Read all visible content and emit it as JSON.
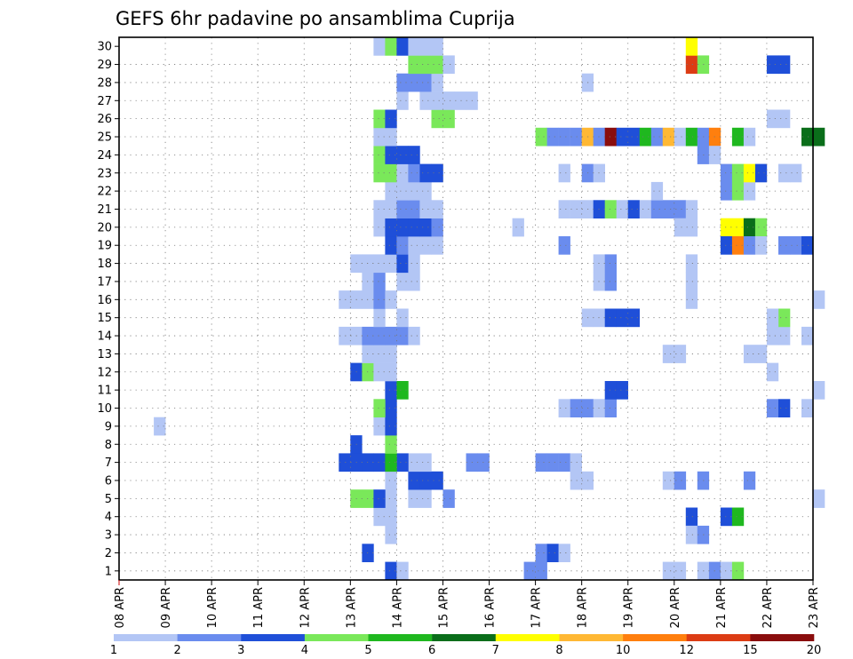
{
  "chart_data": {
    "type": "heatmap",
    "title": "GEFS 6hr padavine po ansamblima Cuprija",
    "x_ticks": [
      "08 APR",
      "09 APR",
      "10 APR",
      "11 APR",
      "12 APR",
      "13 APR",
      "14 APR",
      "15 APR",
      "16 APR",
      "17 APR",
      "18 APR",
      "19 APR",
      "20 APR",
      "21 APR",
      "22 APR",
      "23 APR"
    ],
    "x_start": "08 APR 00Z",
    "x_step": "6h",
    "y_ticks": [
      1,
      2,
      3,
      4,
      5,
      6,
      7,
      8,
      9,
      10,
      11,
      12,
      13,
      14,
      15,
      16,
      17,
      18,
      19,
      20,
      21,
      22,
      23,
      24,
      25,
      26,
      27,
      28,
      29,
      30
    ],
    "y_range": [
      0,
      30
    ],
    "grid": true,
    "legend": {
      "placement": "bottom",
      "labels": [
        "1",
        "2",
        "3",
        "4",
        "5",
        "6",
        "7",
        "8",
        "10",
        "12",
        "15",
        "20"
      ],
      "colors": [
        "#b3c6f5",
        "#6a8cee",
        "#1f4fd8",
        "#7ae85a",
        "#1fb81f",
        "#0a6e1a",
        "#ffff00",
        "#ffb834",
        "#ff7f0e",
        "#dc3c14",
        "#8a0d0d"
      ]
    },
    "cells": [
      [
        3,
        8,
        0
      ],
      [
        23,
        0,
        2
      ],
      [
        24,
        0,
        0
      ],
      [
        21,
        1,
        2
      ],
      [
        23,
        2,
        0
      ],
      [
        23,
        3,
        0
      ],
      [
        22,
        3,
        0
      ],
      [
        23,
        4,
        0
      ],
      [
        25,
        4,
        0
      ],
      [
        26,
        4,
        0
      ],
      [
        28,
        4,
        1
      ],
      [
        20,
        4,
        3
      ],
      [
        21,
        4,
        3
      ],
      [
        22,
        4,
        2
      ],
      [
        23,
        5,
        0
      ],
      [
        26,
        5,
        2
      ],
      [
        27,
        5,
        2
      ],
      [
        25,
        5,
        2
      ],
      [
        26,
        6,
        0
      ],
      [
        25,
        6,
        0
      ],
      [
        30,
        6,
        1
      ],
      [
        31,
        6,
        1
      ],
      [
        20,
        6,
        2
      ],
      [
        21,
        6,
        2
      ],
      [
        22,
        6,
        2
      ],
      [
        24,
        6,
        2
      ],
      [
        23,
        6,
        4
      ],
      [
        19,
        6,
        2
      ],
      [
        20,
        7,
        2
      ],
      [
        23,
        7,
        3
      ],
      [
        22,
        8,
        0
      ],
      [
        23,
        8,
        2
      ],
      [
        23,
        9,
        2
      ],
      [
        22,
        9,
        3
      ],
      [
        23,
        10,
        2
      ],
      [
        24,
        10,
        4
      ],
      [
        20,
        11,
        2
      ],
      [
        21,
        11,
        3
      ],
      [
        22,
        11,
        0
      ],
      [
        23,
        11,
        0
      ],
      [
        21,
        12,
        0
      ],
      [
        22,
        12,
        0
      ],
      [
        23,
        12,
        0
      ],
      [
        19,
        13,
        0
      ],
      [
        20,
        13,
        0
      ],
      [
        21,
        13,
        1
      ],
      [
        22,
        13,
        1
      ],
      [
        23,
        13,
        1
      ],
      [
        24,
        13,
        1
      ],
      [
        25,
        13,
        0
      ],
      [
        22,
        14,
        0
      ],
      [
        24,
        14,
        0
      ],
      [
        19,
        15,
        0
      ],
      [
        20,
        15,
        0
      ],
      [
        21,
        15,
        0
      ],
      [
        22,
        15,
        1
      ],
      [
        23,
        15,
        0
      ],
      [
        21,
        16,
        0
      ],
      [
        22,
        16,
        1
      ],
      [
        24,
        16,
        0
      ],
      [
        25,
        16,
        0
      ],
      [
        20,
        17,
        0
      ],
      [
        21,
        17,
        0
      ],
      [
        22,
        17,
        0
      ],
      [
        23,
        17,
        0
      ],
      [
        24,
        17,
        2
      ],
      [
        25,
        17,
        0
      ],
      [
        23,
        18,
        2
      ],
      [
        24,
        18,
        1
      ],
      [
        25,
        18,
        0
      ],
      [
        26,
        18,
        0
      ],
      [
        27,
        18,
        0
      ],
      [
        22,
        19,
        0
      ],
      [
        23,
        19,
        2
      ],
      [
        24,
        19,
        2
      ],
      [
        25,
        19,
        2
      ],
      [
        26,
        19,
        2
      ],
      [
        27,
        19,
        1
      ],
      [
        22,
        20,
        0
      ],
      [
        23,
        20,
        0
      ],
      [
        24,
        20,
        1
      ],
      [
        25,
        20,
        1
      ],
      [
        26,
        20,
        0
      ],
      [
        27,
        20,
        0
      ],
      [
        23,
        21,
        0
      ],
      [
        24,
        21,
        0
      ],
      [
        25,
        21,
        0
      ],
      [
        26,
        21,
        0
      ],
      [
        22,
        22,
        3
      ],
      [
        23,
        22,
        3
      ],
      [
        24,
        22,
        0
      ],
      [
        25,
        22,
        1
      ],
      [
        26,
        22,
        2
      ],
      [
        27,
        22,
        2
      ],
      [
        22,
        23,
        3
      ],
      [
        23,
        23,
        2
      ],
      [
        24,
        23,
        2
      ],
      [
        25,
        23,
        2
      ],
      [
        22,
        24,
        0
      ],
      [
        23,
        24,
        0
      ],
      [
        22,
        25,
        3
      ],
      [
        23,
        25,
        2
      ],
      [
        27,
        25,
        3
      ],
      [
        28,
        25,
        3
      ],
      [
        24,
        26,
        0
      ],
      [
        26,
        26,
        0
      ],
      [
        27,
        26,
        0
      ],
      [
        28,
        26,
        0
      ],
      [
        29,
        26,
        0
      ],
      [
        30,
        26,
        0
      ],
      [
        24,
        27,
        1
      ],
      [
        25,
        27,
        1
      ],
      [
        26,
        27,
        1
      ],
      [
        27,
        27,
        0
      ],
      [
        25,
        28,
        3
      ],
      [
        26,
        28,
        3
      ],
      [
        27,
        28,
        3
      ],
      [
        28,
        28,
        0
      ],
      [
        22,
        29,
        0
      ],
      [
        23,
        29,
        3
      ],
      [
        24,
        29,
        2
      ],
      [
        25,
        29,
        0
      ],
      [
        26,
        29,
        0
      ],
      [
        27,
        29,
        0
      ]
    ],
    "cells_b": [
      [
        35,
        0,
        1
      ],
      [
        36,
        0,
        1
      ],
      [
        36,
        1,
        1
      ],
      [
        37,
        1,
        2
      ],
      [
        38,
        1,
        0
      ],
      [
        36,
        6,
        1
      ],
      [
        37,
        6,
        1
      ],
      [
        38,
        6,
        1
      ],
      [
        39,
        6,
        0
      ],
      [
        39,
        5,
        0
      ],
      [
        40,
        5,
        0
      ],
      [
        38,
        9,
        0
      ],
      [
        39,
        9,
        1
      ],
      [
        40,
        9,
        1
      ],
      [
        41,
        9,
        0
      ],
      [
        42,
        9,
        1
      ],
      [
        42,
        10,
        2
      ],
      [
        43,
        10,
        2
      ],
      [
        40,
        14,
        0
      ],
      [
        41,
        14,
        0
      ],
      [
        42,
        14,
        2
      ],
      [
        43,
        14,
        2
      ],
      [
        44,
        14,
        2
      ],
      [
        41,
        16,
        0
      ],
      [
        42,
        16,
        1
      ],
      [
        41,
        17,
        0
      ],
      [
        42,
        17,
        1
      ],
      [
        38,
        18,
        1
      ],
      [
        34,
        19,
        0
      ],
      [
        38,
        20,
        0
      ],
      [
        39,
        20,
        0
      ],
      [
        40,
        20,
        0
      ],
      [
        41,
        20,
        2
      ],
      [
        42,
        20,
        3
      ],
      [
        43,
        20,
        0
      ],
      [
        44,
        20,
        2
      ],
      [
        45,
        20,
        0
      ],
      [
        46,
        20,
        1
      ],
      [
        47,
        20,
        1
      ],
      [
        48,
        20,
        1
      ],
      [
        49,
        20,
        0
      ],
      [
        38,
        22,
        0
      ],
      [
        40,
        22,
        1
      ],
      [
        41,
        22,
        0
      ],
      [
        36,
        24,
        3
      ],
      [
        37,
        24,
        1
      ],
      [
        38,
        24,
        1
      ],
      [
        39,
        24,
        1
      ],
      [
        40,
        24,
        7
      ],
      [
        41,
        24,
        1
      ],
      [
        42,
        24,
        10
      ],
      [
        43,
        24,
        2
      ],
      [
        44,
        24,
        2
      ],
      [
        45,
        24,
        4
      ],
      [
        46,
        24,
        1
      ],
      [
        47,
        24,
        7
      ],
      [
        48,
        24,
        0
      ],
      [
        40,
        27,
        0
      ]
    ],
    "cells_c": [
      [
        47,
        0,
        0
      ],
      [
        48,
        0,
        0
      ],
      [
        50,
        0,
        0
      ],
      [
        51,
        0,
        1
      ],
      [
        52,
        0,
        0
      ],
      [
        53,
        0,
        3
      ],
      [
        47,
        5,
        0
      ],
      [
        48,
        5,
        1
      ],
      [
        50,
        5,
        1
      ],
      [
        54,
        5,
        1
      ],
      [
        47,
        12,
        0
      ],
      [
        48,
        12,
        0
      ],
      [
        54,
        12,
        0
      ],
      [
        55,
        12,
        0
      ],
      [
        46,
        21,
        0
      ],
      [
        52,
        21,
        1
      ],
      [
        53,
        21,
        3
      ],
      [
        54,
        21,
        0
      ],
      [
        49,
        3,
        2
      ],
      [
        52,
        3,
        2
      ],
      [
        53,
        3,
        4
      ],
      [
        49,
        2,
        0
      ],
      [
        50,
        2,
        1
      ],
      [
        48,
        19,
        0
      ],
      [
        49,
        19,
        0
      ],
      [
        52,
        19,
        6
      ],
      [
        53,
        19,
        6
      ],
      [
        54,
        19,
        5
      ],
      [
        55,
        19,
        3
      ],
      [
        52,
        18,
        2
      ],
      [
        53,
        18,
        8
      ],
      [
        54,
        18,
        1
      ],
      [
        55,
        18,
        0
      ],
      [
        57,
        18,
        1
      ],
      [
        58,
        18,
        1
      ],
      [
        59,
        18,
        2
      ],
      [
        49,
        17,
        0
      ],
      [
        49,
        16,
        0
      ],
      [
        49,
        15,
        0
      ],
      [
        49,
        24,
        4
      ],
      [
        50,
        24,
        1
      ],
      [
        51,
        24,
        8
      ],
      [
        53,
        24,
        4
      ],
      [
        54,
        24,
        0
      ],
      [
        59,
        24,
        5
      ],
      [
        60,
        24,
        5
      ],
      [
        50,
        23,
        1
      ],
      [
        51,
        23,
        0
      ],
      [
        52,
        22,
        1
      ],
      [
        53,
        22,
        3
      ],
      [
        54,
        22,
        6
      ],
      [
        55,
        22,
        2
      ],
      [
        57,
        22,
        0
      ],
      [
        58,
        22,
        0
      ],
      [
        49,
        28,
        9
      ],
      [
        50,
        28,
        3
      ],
      [
        56,
        28,
        2
      ],
      [
        57,
        28,
        2
      ],
      [
        49,
        29,
        6
      ],
      [
        56,
        25,
        0
      ],
      [
        57,
        25,
        0
      ],
      [
        56,
        11,
        0
      ],
      [
        56,
        13,
        0
      ],
      [
        57,
        13,
        0
      ],
      [
        57,
        14,
        3
      ],
      [
        56,
        14,
        0
      ],
      [
        59,
        13,
        0
      ],
      [
        60,
        15,
        0
      ],
      [
        56,
        9,
        1
      ],
      [
        57,
        9,
        2
      ],
      [
        59,
        9,
        0
      ],
      [
        60,
        10,
        0
      ],
      [
        60,
        4,
        0
      ]
    ]
  }
}
